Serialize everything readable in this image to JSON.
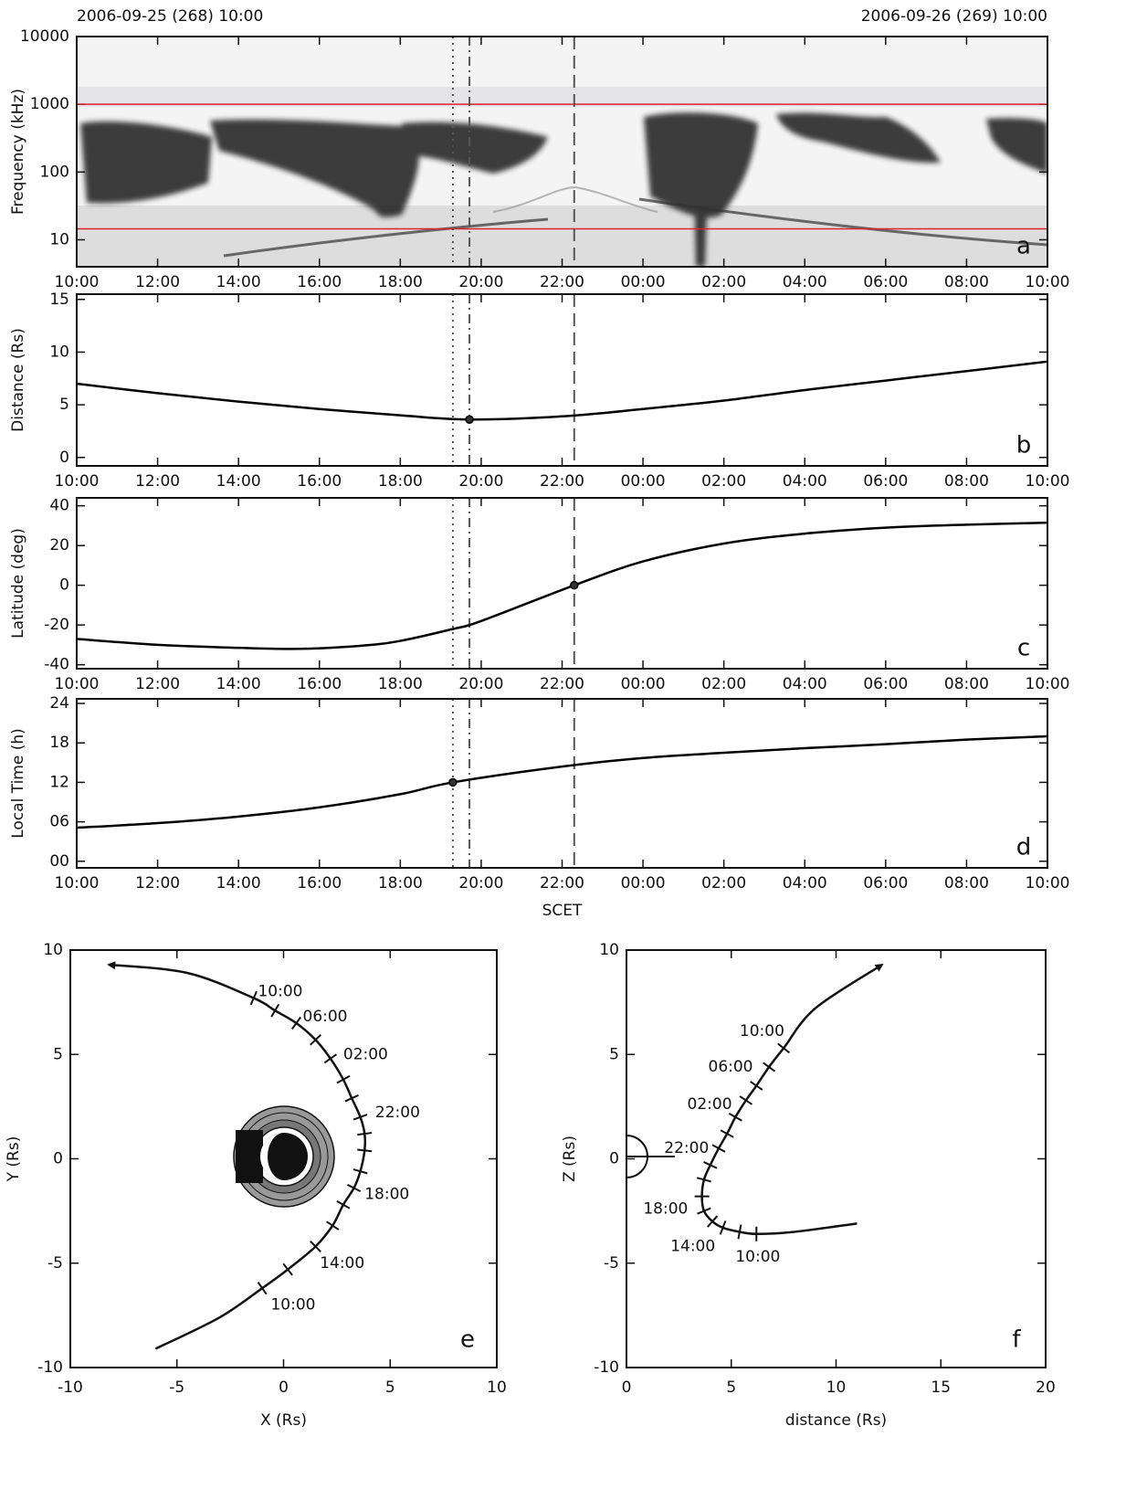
{
  "chart_data": [
    {
      "type": "spectrogram",
      "top_left_label": "2006-09-25 (268) 10:00",
      "top_right_label": "2006-09-26 (269) 10:00",
      "y_label": "Frequency (kHz)",
      "panel_label": "a",
      "log_y": true,
      "xlim": [
        0,
        24
      ],
      "xticks": [
        {
          "value": 0,
          "label": "10:00"
        },
        {
          "value": 2,
          "label": "12:00"
        },
        {
          "value": 4,
          "label": "14:00"
        },
        {
          "value": 6,
          "label": "16:00"
        },
        {
          "value": 8,
          "label": "18:00"
        },
        {
          "value": 10,
          "label": "20:00"
        },
        {
          "value": 12,
          "label": "22:00"
        },
        {
          "value": 14,
          "label": "00:00"
        },
        {
          "value": 16,
          "label": "02:00"
        },
        {
          "value": 18,
          "label": "04:00"
        },
        {
          "value": 20,
          "label": "06:00"
        },
        {
          "value": 22,
          "label": "08:00"
        },
        {
          "value": 24,
          "label": "10:00"
        }
      ],
      "ylim": [
        4,
        10000
      ],
      "yticks": [
        10,
        100,
        1000,
        10000
      ],
      "hlines": [
        {
          "value": 1000,
          "color": "#e0202a"
        },
        {
          "value": 14.5,
          "color": "#e0202a"
        }
      ],
      "vlines": [
        {
          "value": 9.3,
          "style": "dotted"
        },
        {
          "value": 9.71,
          "style": "dashdot"
        },
        {
          "value": 12.3,
          "style": "dashed"
        }
      ]
    },
    {
      "type": "line",
      "y_label": "Distance (Rs)",
      "panel_label": "b",
      "xlim": [
        0,
        24
      ],
      "xticks": [
        {
          "value": 0,
          "label": "10:00"
        },
        {
          "value": 2,
          "label": "12:00"
        },
        {
          "value": 4,
          "label": "14:00"
        },
        {
          "value": 6,
          "label": "16:00"
        },
        {
          "value": 8,
          "label": "18:00"
        },
        {
          "value": 10,
          "label": "20:00"
        },
        {
          "value": 12,
          "label": "22:00"
        },
        {
          "value": 14,
          "label": "00:00"
        },
        {
          "value": 16,
          "label": "02:00"
        },
        {
          "value": 18,
          "label": "04:00"
        },
        {
          "value": 20,
          "label": "06:00"
        },
        {
          "value": 22,
          "label": "08:00"
        },
        {
          "value": 24,
          "label": "10:00"
        }
      ],
      "ylim": [
        -0.8,
        15.5
      ],
      "yticks": [
        0,
        5,
        10,
        15
      ],
      "x": [
        0,
        2,
        4,
        6,
        8,
        9.71,
        12,
        14,
        16,
        18,
        20,
        22,
        24
      ],
      "series": [
        {
          "color": "#000000",
          "values": [
            7.0,
            6.1,
            5.3,
            4.6,
            4.0,
            3.6,
            3.9,
            4.6,
            5.4,
            6.4,
            7.3,
            8.2,
            9.1
          ]
        }
      ],
      "points": [
        {
          "x": 9.71,
          "y": 3.6
        }
      ]
    },
    {
      "type": "line",
      "y_label": "Latitude (deg)",
      "panel_label": "c",
      "xlim": [
        0,
        24
      ],
      "xticks": [
        {
          "value": 0,
          "label": "10:00"
        },
        {
          "value": 2,
          "label": "12:00"
        },
        {
          "value": 4,
          "label": "14:00"
        },
        {
          "value": 6,
          "label": "16:00"
        },
        {
          "value": 8,
          "label": "18:00"
        },
        {
          "value": 10,
          "label": "20:00"
        },
        {
          "value": 12,
          "label": "22:00"
        },
        {
          "value": 14,
          "label": "00:00"
        },
        {
          "value": 16,
          "label": "02:00"
        },
        {
          "value": 18,
          "label": "04:00"
        },
        {
          "value": 20,
          "label": "06:00"
        },
        {
          "value": 22,
          "label": "08:00"
        },
        {
          "value": 24,
          "label": "10:00"
        }
      ],
      "ylim": [
        -42,
        44
      ],
      "yticks": [
        -40,
        -20,
        0,
        20,
        40
      ],
      "x": [
        0,
        2,
        4,
        5.5,
        7,
        8,
        9.3,
        10,
        12.3,
        14,
        16,
        18,
        20,
        22,
        24
      ],
      "series": [
        {
          "color": "#000000",
          "values": [
            -27,
            -30,
            -31.5,
            -32,
            -30.5,
            -28,
            -22,
            -18,
            0,
            12,
            21,
            26,
            29,
            30.5,
            31.5
          ]
        }
      ],
      "points": [
        {
          "x": 12.3,
          "y": 0
        }
      ]
    },
    {
      "type": "line",
      "y_label": "Local Time (h)",
      "panel_label": "d",
      "x_label": "SCET",
      "xlim": [
        0,
        24
      ],
      "xticks": [
        {
          "value": 0,
          "label": "10:00"
        },
        {
          "value": 2,
          "label": "12:00"
        },
        {
          "value": 4,
          "label": "14:00"
        },
        {
          "value": 6,
          "label": "16:00"
        },
        {
          "value": 8,
          "label": "18:00"
        },
        {
          "value": 10,
          "label": "20:00"
        },
        {
          "value": 12,
          "label": "22:00"
        },
        {
          "value": 14,
          "label": "00:00"
        },
        {
          "value": 16,
          "label": "02:00"
        },
        {
          "value": 18,
          "label": "04:00"
        },
        {
          "value": 20,
          "label": "06:00"
        },
        {
          "value": 22,
          "label": "08:00"
        },
        {
          "value": 24,
          "label": "10:00"
        }
      ],
      "ylim": [
        -1,
        24.7
      ],
      "yticks": [
        {
          "value": 0,
          "label": "00"
        },
        {
          "value": 6,
          "label": "06"
        },
        12,
        18,
        24
      ],
      "x": [
        0,
        2,
        4,
        6,
        8,
        9.3,
        12,
        14,
        16,
        18,
        20,
        22,
        24
      ],
      "series": [
        {
          "color": "#000000",
          "values": [
            5.1,
            5.8,
            6.8,
            8.2,
            10.2,
            12,
            14.4,
            15.7,
            16.5,
            17.2,
            17.8,
            18.5,
            19.0
          ]
        }
      ],
      "points": [
        {
          "x": 9.3,
          "y": 12
        }
      ]
    },
    {
      "type": "trajectory",
      "x_label": "X (Rs)",
      "y_label": "Y (Rs)",
      "panel_label": "e",
      "xlim": [
        -10,
        10
      ],
      "xticks": [
        -10,
        -5,
        0,
        5,
        10
      ],
      "ylim": [
        -10,
        10
      ],
      "yticks": [
        -10,
        -5,
        0,
        5,
        10
      ],
      "x": [
        -6,
        -3,
        -1,
        0.2,
        1.5,
        2.3,
        2.8,
        3.3,
        3.6,
        3.8,
        3.8,
        3.6,
        3.2,
        2.8,
        2.2,
        1.5,
        0.6,
        -0.4,
        -1.4,
        -4.5,
        -8.2
      ],
      "y": [
        -9.1,
        -7.6,
        -6.2,
        -5.3,
        -4.2,
        -3.2,
        -2.2,
        -1.4,
        -0.6,
        0.4,
        1.2,
        2.0,
        2.9,
        3.8,
        4.8,
        5.7,
        6.5,
        7.1,
        7.7,
        8.9,
        9.3
      ],
      "time_labels": [
        {
          "label": "10:00",
          "x": -0.6,
          "y": -7.0
        },
        {
          "label": "14:00",
          "x": 1.7,
          "y": -5.0
        },
        {
          "label": "18:00",
          "x": 3.8,
          "y": -1.7
        },
        {
          "label": "22:00",
          "x": 4.3,
          "y": 2.2
        },
        {
          "label": "02:00",
          "x": 2.8,
          "y": 5.0
        },
        {
          "label": "06:00",
          "x": 0.9,
          "y": 6.8
        },
        {
          "label": "10:00",
          "x": -1.2,
          "y": 8.0
        }
      ]
    },
    {
      "type": "trajectory",
      "x_label": "distance (Rs)",
      "y_label": "Z (Rs)",
      "panel_label": "f",
      "xlim": [
        0,
        20
      ],
      "xticks": [
        0,
        5,
        10,
        15,
        20
      ],
      "ylim": [
        -10,
        10
      ],
      "yticks": [
        -10,
        -5,
        0,
        5,
        10
      ],
      "x": [
        11,
        8,
        6.2,
        5.4,
        4.6,
        4.1,
        3.7,
        3.6,
        3.7,
        4.0,
        4.4,
        4.8,
        5.2,
        5.7,
        6.2,
        6.8,
        7.5,
        9.0,
        12.2
      ],
      "y": [
        -3.1,
        -3.5,
        -3.6,
        -3.5,
        -3.3,
        -3.0,
        -2.5,
        -1.8,
        -1.0,
        -0.3,
        0.5,
        1.2,
        2.0,
        2.8,
        3.5,
        4.4,
        5.3,
        7.2,
        9.3
      ],
      "time_labels": [
        {
          "label": "10:00",
          "x": 5.2,
          "y": -4.7
        },
        {
          "label": "14:00",
          "x": 2.1,
          "y": -4.2
        },
        {
          "label": "18:00",
          "x": 0.8,
          "y": -2.4
        },
        {
          "label": "22:00",
          "x": 1.8,
          "y": 0.5
        },
        {
          "label": "02:00",
          "x": 2.9,
          "y": 2.6
        },
        {
          "label": "06:00",
          "x": 3.9,
          "y": 4.4
        },
        {
          "label": "10:00",
          "x": 5.4,
          "y": 6.1
        }
      ]
    }
  ]
}
